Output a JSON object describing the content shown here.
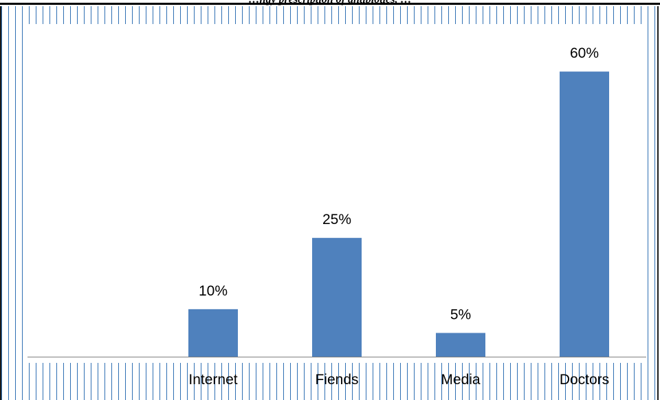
{
  "page": {
    "truncated_title": "…ngy prescription of antibiotics, …"
  },
  "colors": {
    "bar": "#4f81bd",
    "axis": "#7f7f7f",
    "pattern_line": "#2f6fb3",
    "text": "#000000"
  },
  "chart_data": {
    "type": "bar",
    "title": "",
    "xlabel": "",
    "ylabel": "",
    "categories": [
      "",
      "Internet",
      "Fiends",
      "Media",
      "Doctors"
    ],
    "values": [
      null,
      10,
      25,
      5,
      60
    ],
    "data_labels": [
      "",
      "10%",
      "25%",
      "5%",
      "60%"
    ],
    "ylim": [
      0,
      70
    ],
    "grid": false,
    "legend": "none"
  }
}
